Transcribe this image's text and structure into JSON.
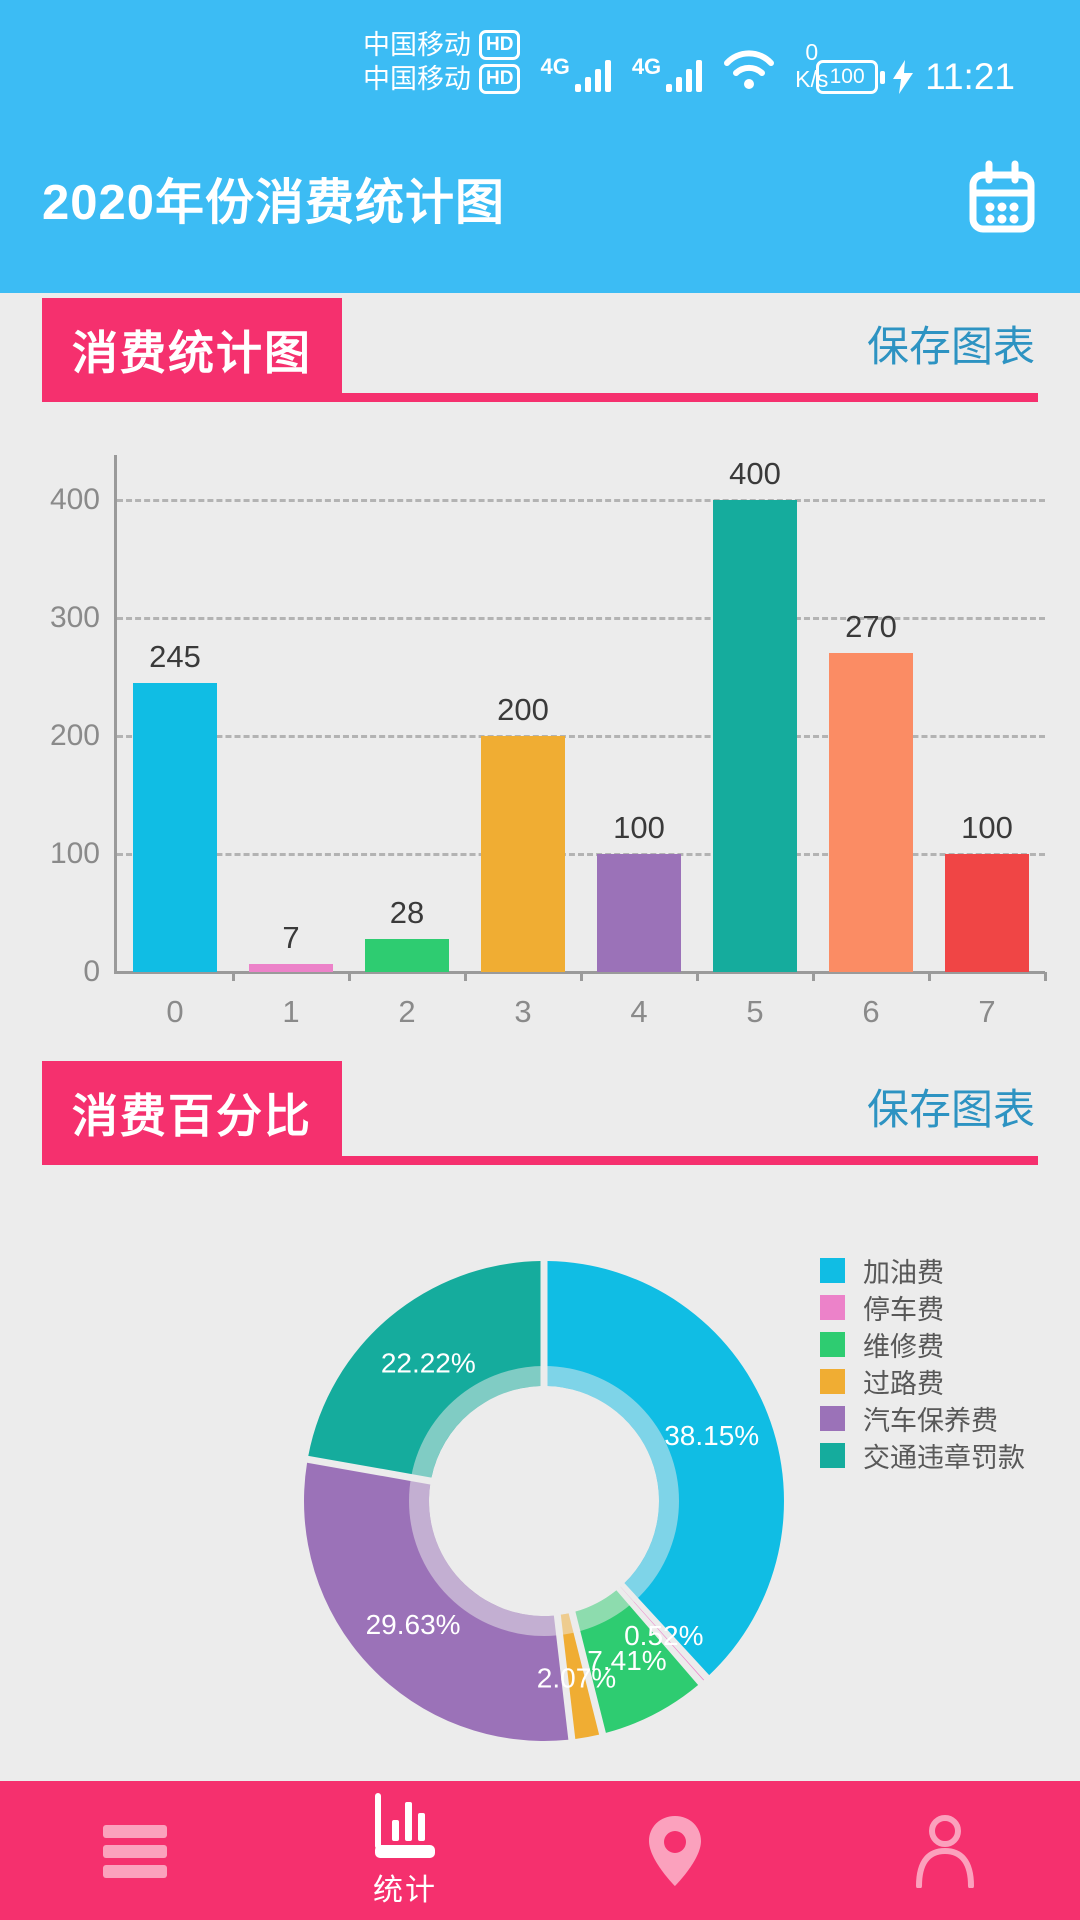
{
  "status_bar": {
    "carrier_line1": "中国移动",
    "carrier_line2": "中国移动",
    "hd_badge1": "HD",
    "hd_badge2": "HD",
    "sim1_network": "4G",
    "sim2_network": "4G",
    "net_speed_value": "0",
    "net_speed_unit": "K/s",
    "battery_level": "100",
    "time": "11:21"
  },
  "header": {
    "title": "2020年份消费统计图"
  },
  "bar_section": {
    "title": "消费统计图",
    "save_button": "保存图表"
  },
  "pie_section": {
    "title": "消费百分比",
    "save_button": "保存图表"
  },
  "bottom_nav": {
    "items": [
      {
        "icon": "menu-icon",
        "label": "",
        "active": false
      },
      {
        "icon": "stats-icon",
        "label": "统计",
        "active": true
      },
      {
        "icon": "location-icon",
        "label": "",
        "active": false
      },
      {
        "icon": "profile-icon",
        "label": "",
        "active": false
      }
    ]
  },
  "colors": {
    "header_blue": "#3cbcf4",
    "accent_pink": "#f5306e",
    "save_link_blue": "#2d93c2",
    "background": "#ececec",
    "grid_gray": "#b3b3b3",
    "axis_gray": "#9a9a9a"
  },
  "chart_data": [
    {
      "type": "bar",
      "title": "消费统计图",
      "categories": [
        "0",
        "1",
        "2",
        "3",
        "4",
        "5",
        "6",
        "7"
      ],
      "values": [
        245,
        7,
        28,
        200,
        100,
        400,
        270,
        100
      ],
      "bar_colors": [
        "#10bde4",
        "#ec82c9",
        "#2ecc71",
        "#f0ad33",
        "#9b72b8",
        "#15ac9d",
        "#fb8c64",
        "#f04545"
      ],
      "yticks": [
        0,
        100,
        200,
        300,
        400
      ],
      "ylim": [
        0,
        438
      ],
      "grid": "dashed",
      "value_labels_shown": true
    },
    {
      "type": "pie",
      "donut": true,
      "title": "消费百分比",
      "labels": [
        "加油费",
        "停车费",
        "维修费",
        "过路费",
        "汽车保养费",
        "交通违章罚款"
      ],
      "values_percent": [
        38.15,
        0.52,
        7.41,
        2.07,
        29.63,
        22.22
      ],
      "value_labels": [
        "38.15%",
        "0.52%",
        "7.41%",
        "2.07%",
        "29.63%",
        "22.22%"
      ],
      "slice_colors": [
        "#10bde4",
        "#ec82c9",
        "#2ecc71",
        "#f0ad33",
        "#9b72b8",
        "#15ac9d"
      ],
      "legend_position": "right",
      "start_angle": "top",
      "direction": "clockwise"
    }
  ]
}
